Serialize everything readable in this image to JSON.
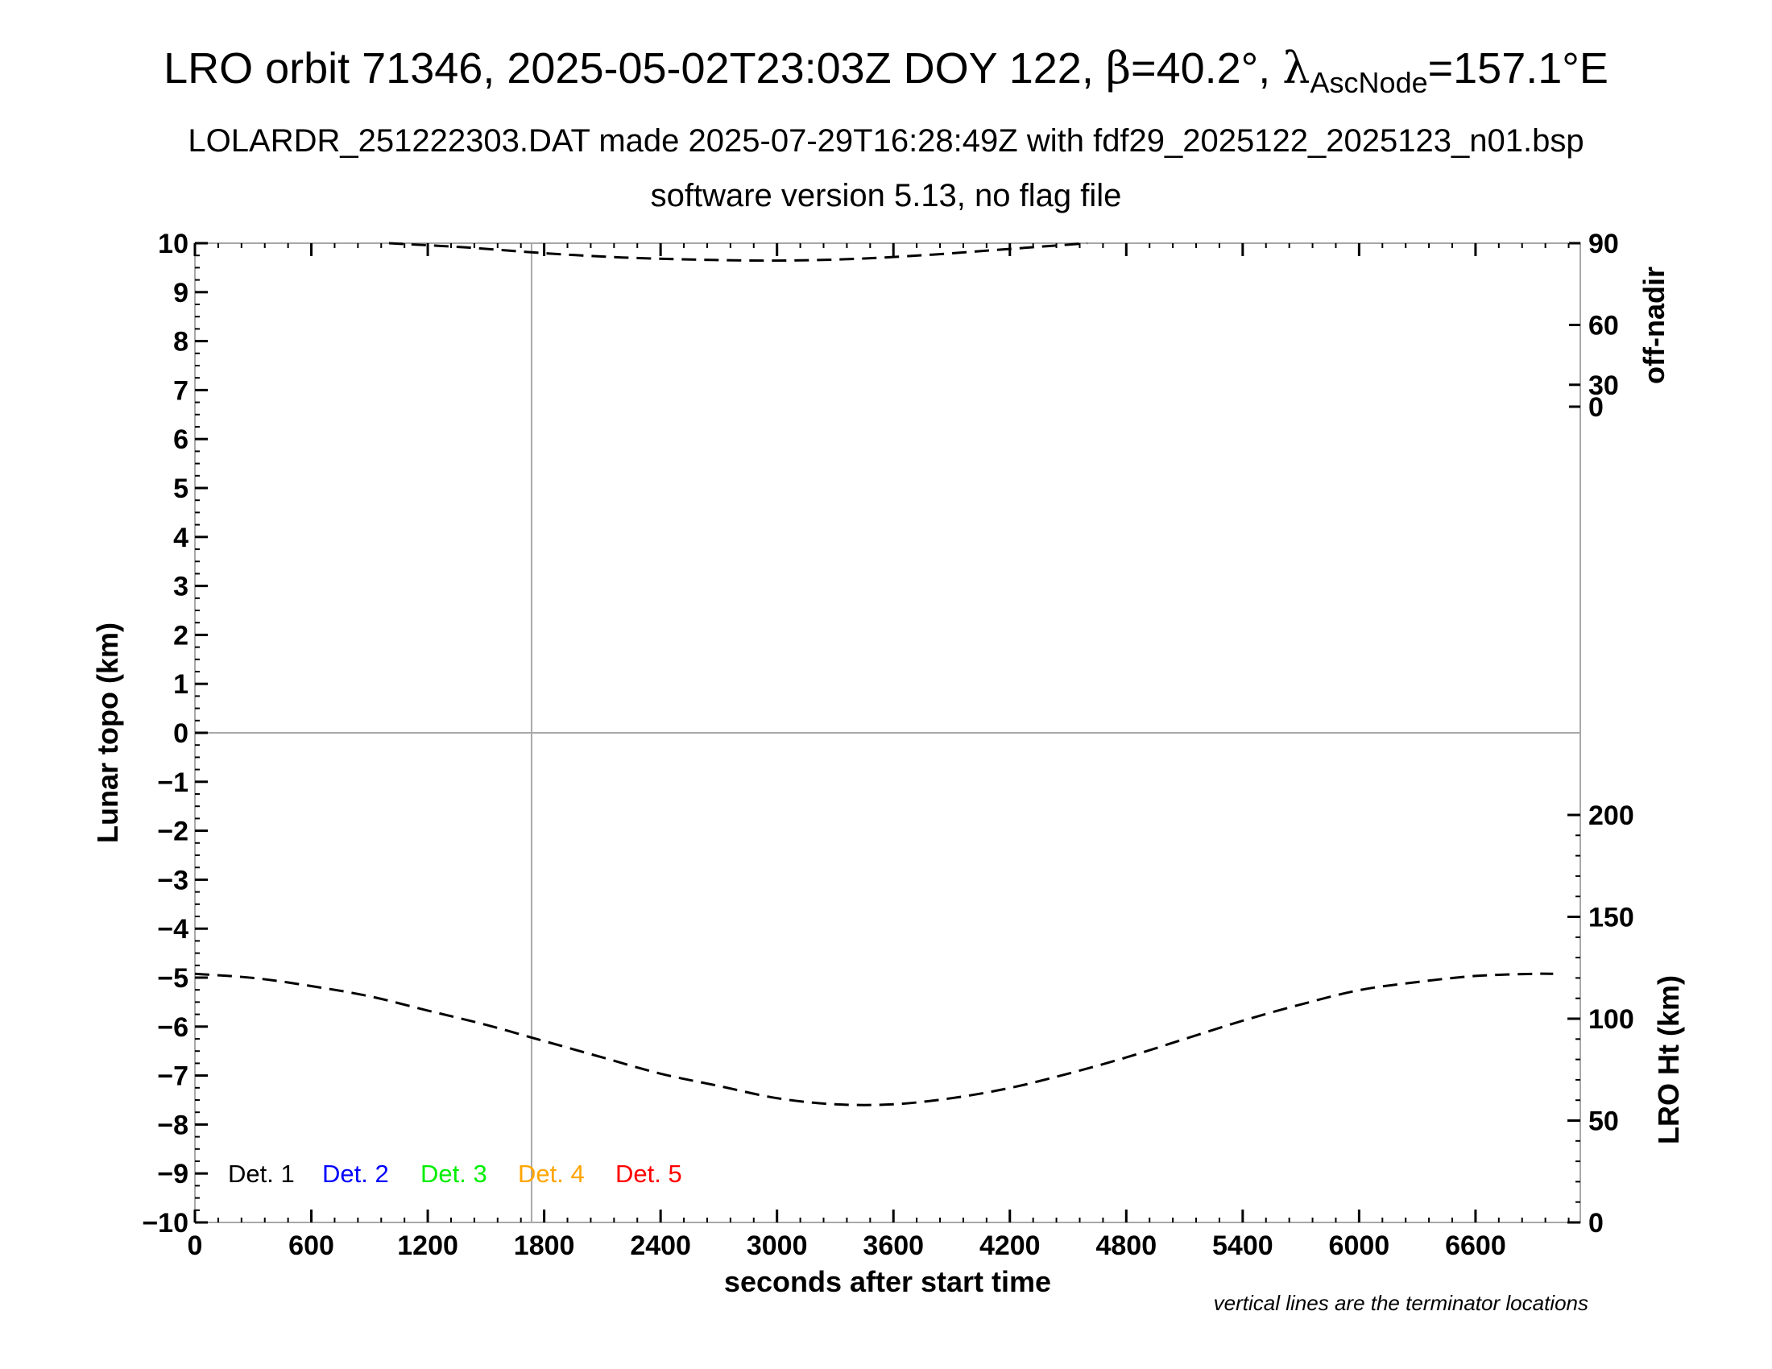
{
  "chart_data": {
    "type": "line",
    "title": {
      "pre": "LRO orbit 71346, 2025-05-02T23:03Z DOY 122, ",
      "beta_symbol": "β",
      "beta_value": "=40.2°, ",
      "lambda_symbol": "λ",
      "lambda_sub": "AscNode",
      "lambda_value": "=157.1°E"
    },
    "subtitle1": "LOLARDR_251222303.DAT made 2025-07-29T16:28:49Z with fdf29_2025122_2025123_n01.bsp",
    "subtitle2": "software version 5.13, no flag file",
    "xlabel": "seconds after start time",
    "ylabel_left": "Lunar topo (km)",
    "ylabel_right_top": "off-nadir",
    "ylabel_right_bottom": "LRO Ht (km)",
    "note": "vertical lines are the terminator locations",
    "xlim": [
      0,
      7140
    ],
    "ylim_left": [
      -10,
      10
    ],
    "x_ticks": [
      "0",
      "600",
      "1200",
      "1800",
      "2400",
      "3000",
      "3600",
      "4200",
      "4800",
      "5400",
      "6000",
      "6600"
    ],
    "x_tick_values": [
      0,
      600,
      1200,
      1800,
      2400,
      3000,
      3600,
      4200,
      4800,
      5400,
      6000,
      6600
    ],
    "y_ticks_left": [
      "10",
      "9",
      "8",
      "7",
      "6",
      "5",
      "4",
      "3",
      "2",
      "1",
      "0",
      "−1",
      "−2",
      "−3",
      "−4",
      "−5",
      "−6",
      "−7",
      "−8",
      "−9",
      "−10"
    ],
    "y_tick_values_left": [
      10,
      9,
      8,
      7,
      6,
      5,
      4,
      3,
      2,
      1,
      0,
      -1,
      -2,
      -3,
      -4,
      -5,
      -6,
      -7,
      -8,
      -9,
      -10
    ],
    "right_top_ticks": [
      "90",
      "60",
      "30",
      "0"
    ],
    "right_top_values": [
      90,
      60,
      30,
      0
    ],
    "right_bottom_ticks": [
      "200",
      "150",
      "100",
      "50",
      "0"
    ],
    "right_bottom_values": [
      200,
      150,
      100,
      50,
      0
    ],
    "terminator_x": 1735,
    "zero_line_y": 0,
    "legend": [
      {
        "label": "Det. 1",
        "color": "#000000"
      },
      {
        "label": "Det. 2",
        "color": "#0000ff"
      },
      {
        "label": "Det. 3",
        "color": "#00ee00"
      },
      {
        "label": "Det. 4",
        "color": "#ffa500"
      },
      {
        "label": "Det. 5",
        "color": "#ff0000"
      }
    ],
    "series": [
      {
        "axis": "off-nadir",
        "style": "dashed",
        "x": [
          1000,
          1400,
          1800,
          2200,
          2600,
          3000,
          3400,
          3800,
          4200,
          4600
        ],
        "y": [
          90,
          88.5,
          86.5,
          85.0,
          84.2,
          83.9,
          84.5,
          86.0,
          88.0,
          90
        ]
      },
      {
        "axis": "LRO Ht (km)",
        "style": "dashed",
        "x": [
          0,
          300,
          600,
          900,
          1200,
          1500,
          1800,
          2100,
          2400,
          2700,
          3000,
          3300,
          3600,
          3900,
          4200,
          4500,
          4800,
          5100,
          5400,
          5700,
          6000,
          6300,
          6600,
          6900,
          7000
        ],
        "y": [
          122,
          120,
          116,
          111,
          104,
          97,
          89,
          81,
          73,
          67,
          61,
          58,
          58,
          61,
          66,
          73,
          81,
          90,
          99,
          107,
          114,
          118,
          121,
          122,
          122
        ]
      }
    ]
  }
}
